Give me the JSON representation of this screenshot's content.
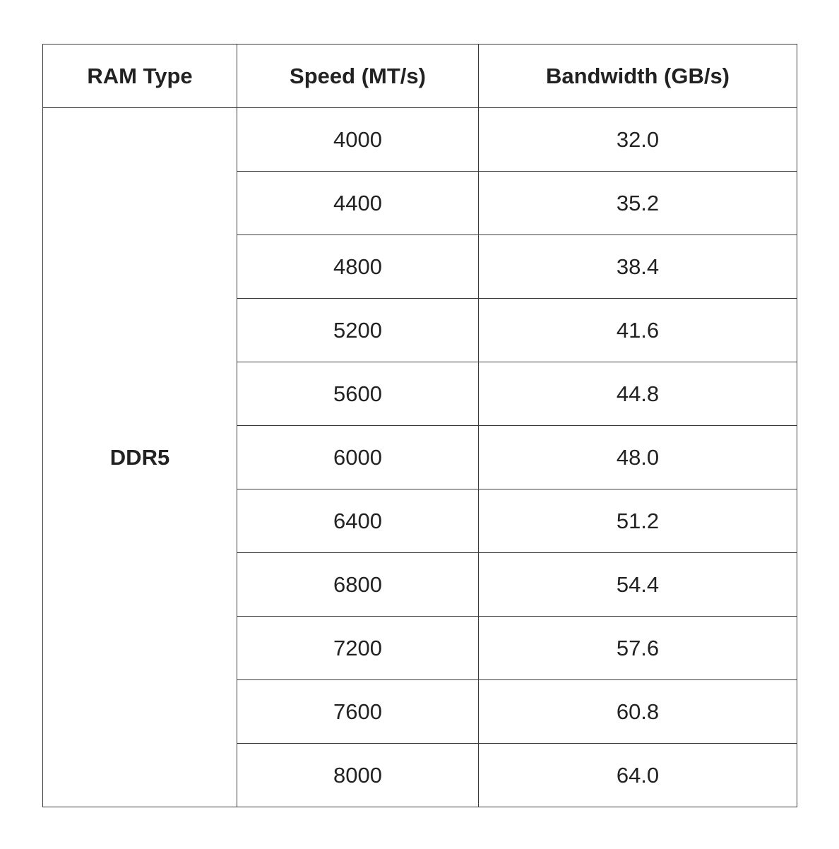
{
  "table": {
    "header": [
      "RAM Type",
      "Speed (MT/s)",
      "Bandwidth (GB/s)"
    ],
    "ram_type": "DDR5",
    "rows": [
      [
        "4000",
        "32.0"
      ],
      [
        "4400",
        "35.2"
      ],
      [
        "4800",
        "38.4"
      ],
      [
        "5200",
        "41.6"
      ],
      [
        "5600",
        "44.8"
      ],
      [
        "6000",
        "48.0"
      ],
      [
        "6400",
        "51.2"
      ],
      [
        "6800",
        "54.4"
      ],
      [
        "7200",
        "57.6"
      ],
      [
        "7600",
        "60.8"
      ],
      [
        "8000",
        "64.0"
      ]
    ]
  }
}
